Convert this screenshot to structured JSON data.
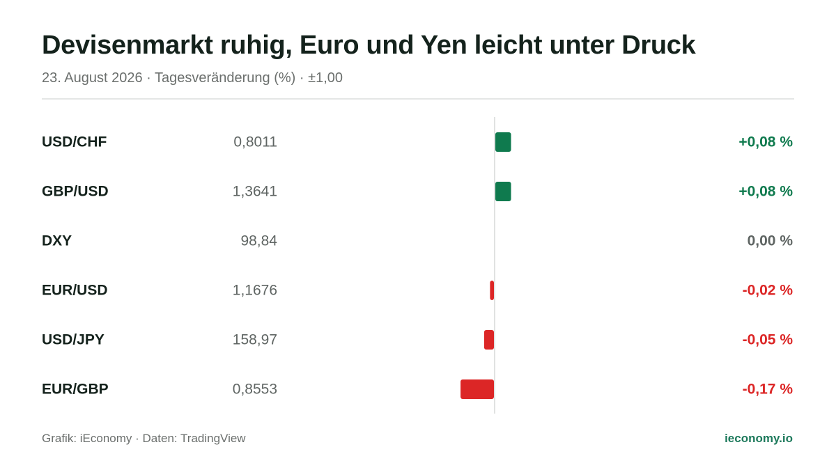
{
  "header": {
    "title": "Devisenmarkt ruhig, Euro und Yen leicht unter Druck",
    "subtitle": "23. August 2026 · Tagesveränderung (%) · ±1,00"
  },
  "footer": {
    "source": "Grafik: iEconomy · Daten: TradingView",
    "brand": "ieconomy.io"
  },
  "colors": {
    "positive": "#0f7a4e",
    "negative": "#dc2626",
    "neutral": "#5f6563",
    "label": "#14221c",
    "value": "#5f6563",
    "axis": "#e0e2e1"
  },
  "chart_data": {
    "type": "bar",
    "orientation": "horizontal",
    "xlim": [
      -1,
      1
    ],
    "categories": [
      "USD/CHF",
      "GBP/USD",
      "DXY",
      "EUR/USD",
      "USD/JPY",
      "EUR/GBP"
    ],
    "prices": [
      "0,8011",
      "1,3641",
      "98,84",
      "1,1676",
      "158,97",
      "0,8553"
    ],
    "values": [
      0.08,
      0.08,
      0.0,
      -0.02,
      -0.05,
      -0.17
    ],
    "value_labels": [
      "+0,08 %",
      "+0,08 %",
      "0,00 %",
      "-0,02 %",
      "-0,05 %",
      "-0,17 %"
    ]
  }
}
